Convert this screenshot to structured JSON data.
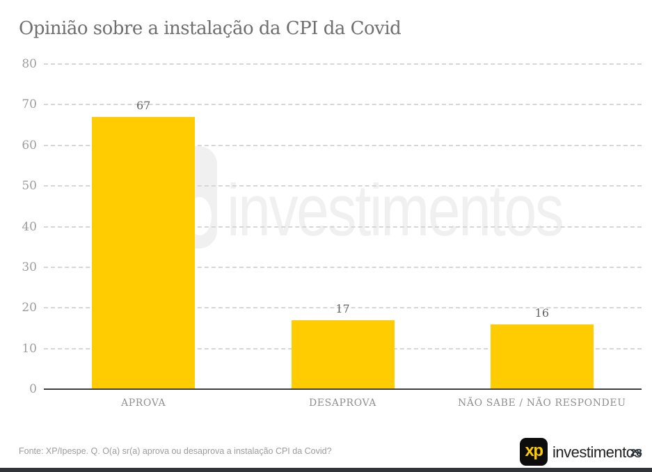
{
  "title": "Opinião sobre a instalação da CPI da Covid",
  "watermark": {
    "text": "investimentos"
  },
  "chart_data": {
    "type": "bar",
    "title": "Opinião sobre a instalação da CPI da Covid",
    "categories": [
      "APROVA",
      "DESAPROVA",
      "NÃO SABE / NÃO RESPONDEU"
    ],
    "values": [
      67,
      17,
      16
    ],
    "xlabel": "",
    "ylabel": "",
    "ylim": [
      0,
      80
    ],
    "yticks": [
      0,
      10,
      20,
      30,
      40,
      50,
      60,
      70,
      80
    ],
    "grid": "horizontal-dashed",
    "legend": "none",
    "bar_color": "#FECC00",
    "value_labels_shown": true
  },
  "footer": {
    "source": "Fonte: XP/Ipespe. Q. O(a) sr(a) aprova ou desaprova a instalação CPI da Covid?",
    "logo_text": "xp",
    "brand_text": "investimentos",
    "page_number": "28"
  },
  "colors": {
    "bar": "#FECC00",
    "logo_bg": "#0d0d0d",
    "logo_xp": "#FECC00",
    "title_text": "#6f6f6f",
    "axis_text": "#9d9d9d",
    "gridline": "#d6d6d6",
    "baseline": "#3d3d3d",
    "watermark": "#f0f0f0",
    "bottom_strip": "#31353a"
  }
}
